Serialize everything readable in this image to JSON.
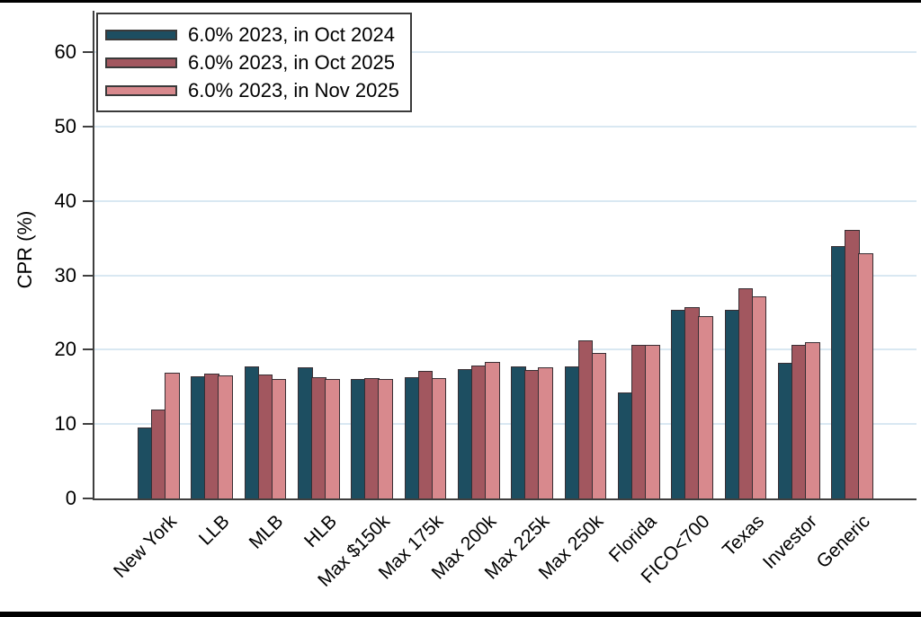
{
  "chart_data": {
    "type": "bar",
    "title": "",
    "ylabel": "CPR (%)",
    "xlabel": "",
    "ylim": [
      0,
      60
    ],
    "yticks": [
      0,
      10,
      20,
      30,
      40,
      50,
      60
    ],
    "grid": true,
    "legend_position": "top-left",
    "categories": [
      "New York",
      "LLB",
      "MLB",
      "HLB",
      "Max $150k",
      "Max 175k",
      "Max 200k",
      "Max 225k",
      "Max 250k",
      "Florida",
      "FICO<700",
      "Texas",
      "Investor",
      "Generic"
    ],
    "series": [
      {
        "name": "6.0% 2023, in Oct 2024",
        "color": "#1d4e61",
        "values": [
          9.5,
          16.4,
          17.7,
          17.6,
          16.1,
          16.3,
          17.4,
          17.7,
          17.8,
          14.3,
          25.4,
          25.3,
          18.2,
          33.9
        ]
      },
      {
        "name": "6.0% 2023, in Oct 2025",
        "color": "#a2575f",
        "values": [
          11.9,
          16.8,
          16.7,
          16.3,
          16.2,
          17.1,
          17.9,
          17.3,
          21.3,
          20.7,
          25.7,
          28.3,
          20.6,
          36.1
        ]
      },
      {
        "name": "6.0% 2023, in Nov 2025",
        "color": "#d8898d",
        "values": [
          16.9,
          16.5,
          16.1,
          16.0,
          16.0,
          16.2,
          18.4,
          17.6,
          19.6,
          20.6,
          24.5,
          27.2,
          21.0,
          33.0
        ]
      }
    ]
  },
  "colors": {
    "gridline": "#d9e8f2",
    "axis": "#3f3f3f",
    "bar_edge": "#382e33",
    "frame": "#000000"
  }
}
